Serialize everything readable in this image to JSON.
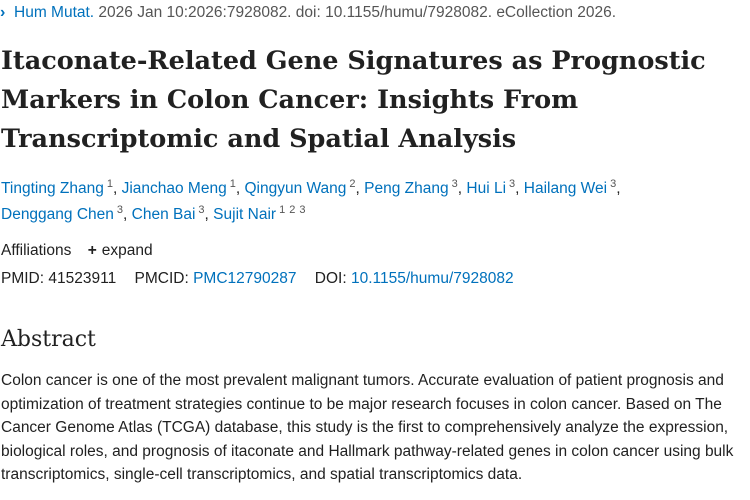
{
  "citation": {
    "journal": "Hum Mutat.",
    "details": "2026 Jan 10:2026:7928082. doi: 10.1155/humu/7928082. eCollection 2026."
  },
  "title": "Itaconate-Related Gene Signatures as Prognostic Markers in Colon Cancer: Insights From Transcriptomic and Spatial Analysis",
  "authors": [
    {
      "name": "Tingting Zhang",
      "aff": [
        "1"
      ]
    },
    {
      "name": "Jianchao Meng",
      "aff": [
        "1"
      ]
    },
    {
      "name": "Qingyun Wang",
      "aff": [
        "2"
      ]
    },
    {
      "name": "Peng Zhang",
      "aff": [
        "3"
      ]
    },
    {
      "name": "Hui Li",
      "aff": [
        "3"
      ]
    },
    {
      "name": "Hailang Wei",
      "aff": [
        "3"
      ]
    },
    {
      "name": "Denggang Chen",
      "aff": [
        "3"
      ]
    },
    {
      "name": "Chen Bai",
      "aff": [
        "3"
      ]
    },
    {
      "name": "Sujit Nair",
      "aff": [
        "1",
        "2",
        "3"
      ]
    }
  ],
  "affiliations": {
    "label": "Affiliations",
    "expand_icon": "+",
    "expand_label": "expand"
  },
  "ids": {
    "pmid_label": "PMID:",
    "pmid": "41523911",
    "pmcid_label": "PMCID:",
    "pmcid": "PMC12790287",
    "doi_label": "DOI:",
    "doi": "10.1155/humu/7928082"
  },
  "abstract": {
    "heading": "Abstract",
    "text": "Colon cancer is one of the most prevalent malignant tumors. Accurate evaluation of patient prognosis and optimization of treatment strategies continue to be major research focuses in colon cancer. Based on The Cancer Genome Atlas (TCGA) database, this study is the first to comprehensively analyze the expression, biological roles, and prognosis of itaconate and Hallmark pathway-related genes in colon cancer using bulk transcriptomics, single-cell transcriptomics, and spatial transcriptomics data."
  },
  "colors": {
    "link": "#0071bc",
    "text": "#212121"
  }
}
